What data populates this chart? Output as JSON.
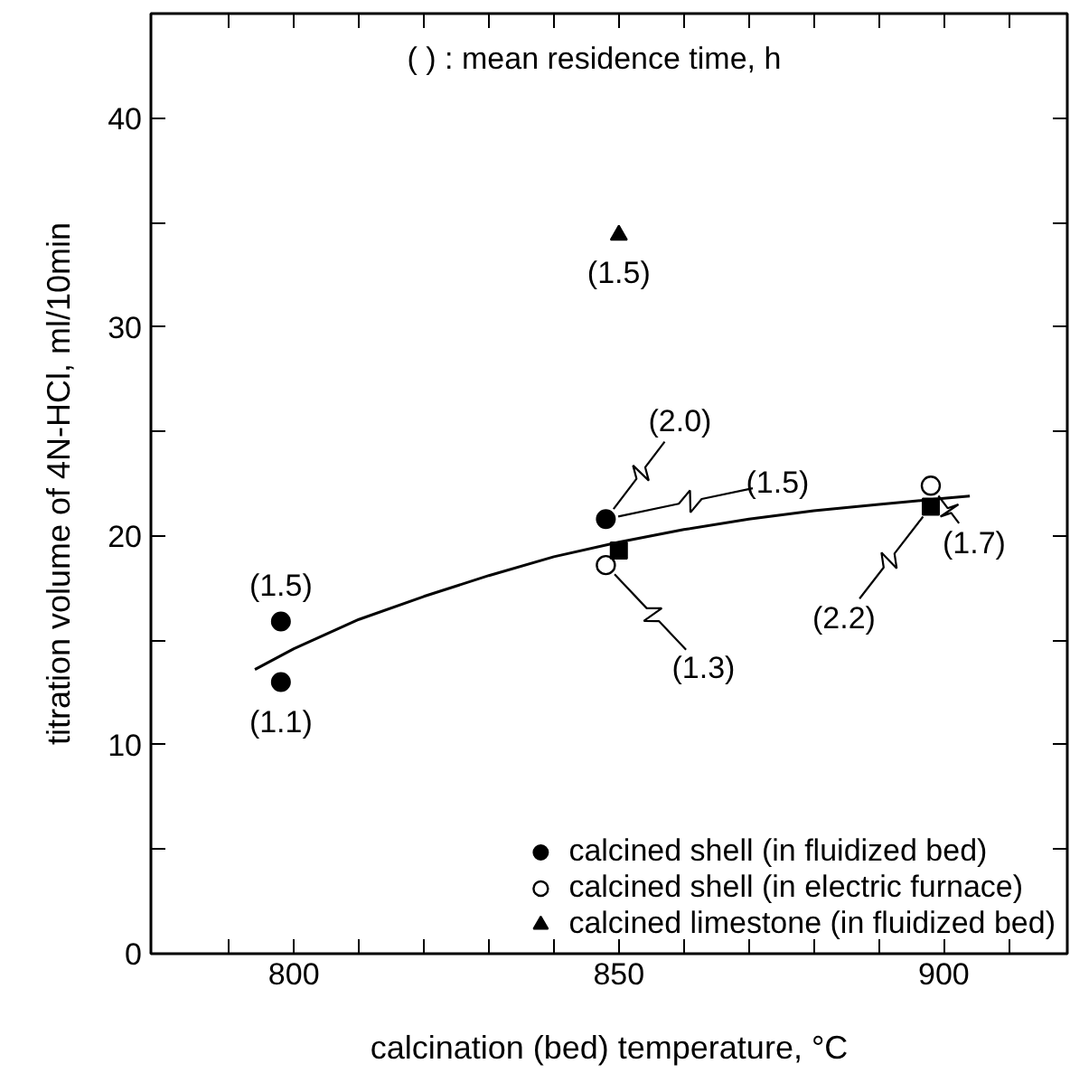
{
  "chart_data": {
    "type": "scatter",
    "xlabel": "calcination (bed) temperature, °C",
    "ylabel": "titration volume of 4N-HCl, ml/10min",
    "xlim": [
      778,
      919
    ],
    "ylim": [
      0,
      45
    ],
    "xticks": [
      {
        "value": 790,
        "label": null
      },
      800,
      {
        "value": 810,
        "label": null
      },
      {
        "value": 820,
        "label": null
      },
      {
        "value": 830,
        "label": null
      },
      {
        "value": 840,
        "label": null
      },
      850,
      {
        "value": 860,
        "label": null
      },
      {
        "value": 870,
        "label": null
      },
      {
        "value": 880,
        "label": null
      },
      {
        "value": 890,
        "label": null
      },
      900,
      {
        "value": 910,
        "label": null
      }
    ],
    "yticks": [
      0,
      {
        "value": 5,
        "label": null
      },
      10,
      {
        "value": 15,
        "label": null
      },
      20,
      {
        "value": 25,
        "label": null
      },
      30,
      {
        "value": 35,
        "label": null
      },
      40
    ],
    "grid": false,
    "legend": "bottom right",
    "series": [
      {
        "name": "calcined shell (in fluidized bed)",
        "color": "#000000",
        "marker": "circle",
        "x": [
          798,
          798,
          848
        ],
        "values": [
          15.9,
          13.0,
          20.8
        ]
      },
      {
        "name": "calcined shell (in electric furnace)",
        "color": "#000000",
        "marker": "circle_open",
        "x": [
          848,
          898
        ],
        "values": [
          18.6,
          22.4
        ]
      },
      {
        "name": "calcined limestone (in fluidized bed)",
        "color": "#000000",
        "marker": "triangle",
        "x": [
          850
        ],
        "values": [
          34.4
        ]
      },
      {
        "color": "#000000",
        "marker": "square",
        "x": [
          850,
          898
        ],
        "values": [
          19.3,
          21.4
        ]
      },
      {
        "type": "line",
        "color": "#000000",
        "x": [
          794,
          800,
          810,
          820,
          830,
          840,
          850,
          860,
          870,
          880,
          890,
          900,
          904
        ],
        "values": [
          13.6,
          14.6,
          16.0,
          17.1,
          18.1,
          19.0,
          19.7,
          20.3,
          20.8,
          21.2,
          21.5,
          21.8,
          21.9
        ]
      }
    ],
    "annotations": [
      "( ) : mean residence time, h",
      {
        "text": "(1.5)",
        "x": 850,
        "y": 34.4
      },
      {
        "text": "(1.5)",
        "x": 798,
        "y": 15.9
      },
      {
        "text": "(1.1)",
        "x": 798,
        "y": 13.0
      },
      {
        "text": "(2.0)",
        "x": 848,
        "y": 20.8
      },
      {
        "text": "(1.5)",
        "x": 848,
        "y": 20.8
      },
      {
        "text": "(1.3)",
        "x": 848,
        "y": 18.6
      },
      {
        "text": "(2.2)",
        "x": 898,
        "y": 21.4
      },
      {
        "text": "(1.7)",
        "x": 898,
        "y": 22.4
      }
    ]
  }
}
